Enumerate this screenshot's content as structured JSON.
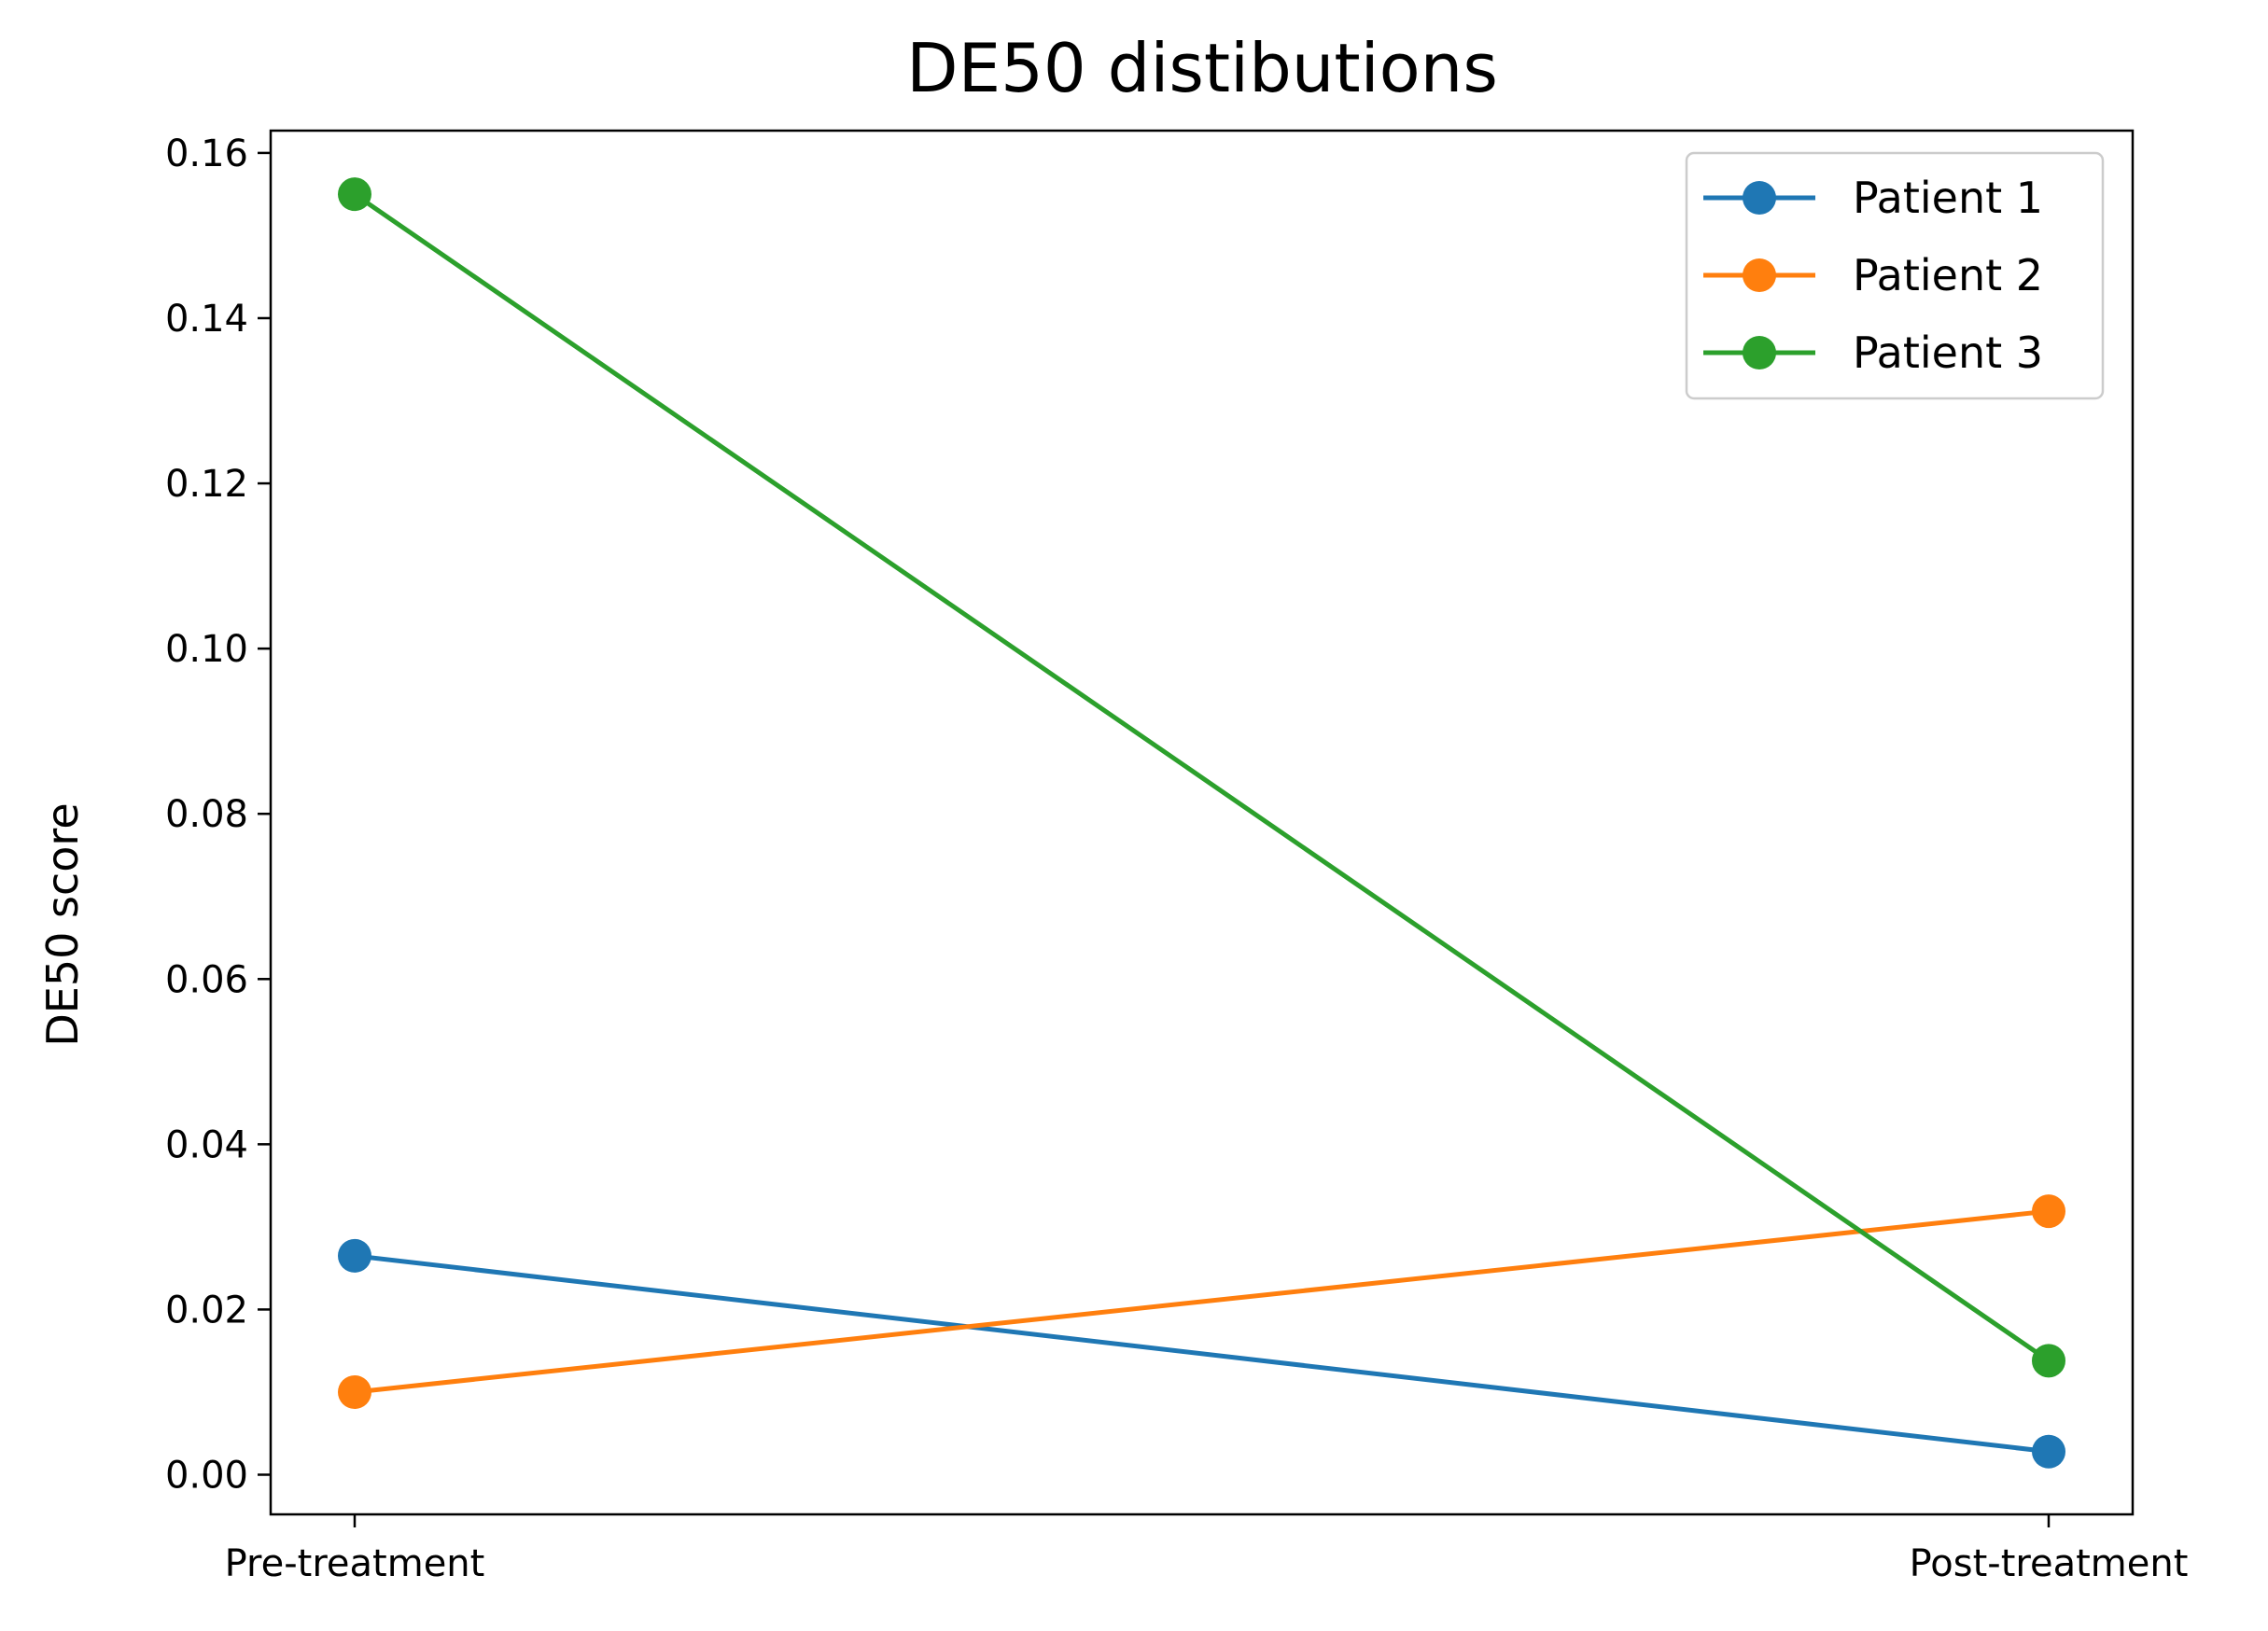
{
  "chart_data": {
    "type": "line",
    "title": "DE50 distibutions",
    "xlabel": "",
    "ylabel": "DE50 score",
    "categories": [
      "Pre-treatment",
      "Post-treatment"
    ],
    "series": [
      {
        "name": "Patient 1",
        "color": "#1f77b4",
        "values": [
          0.0265,
          0.0028
        ]
      },
      {
        "name": "Patient 2",
        "color": "#ff7f0e",
        "values": [
          0.01,
          0.0319
        ]
      },
      {
        "name": "Patient 3",
        "color": "#2ca02c",
        "values": [
          0.155,
          0.0138
        ]
      }
    ],
    "ylim": [
      -0.0048,
      0.1627
    ],
    "yticks": [
      0.0,
      0.02,
      0.04,
      0.06,
      0.08,
      0.1,
      0.12,
      0.14,
      0.16
    ],
    "ytick_labels": [
      "0.00",
      "0.02",
      "0.04",
      "0.06",
      "0.08",
      "0.10",
      "0.12",
      "0.14",
      "0.16"
    ],
    "grid": false,
    "legend_position": "top-right"
  }
}
